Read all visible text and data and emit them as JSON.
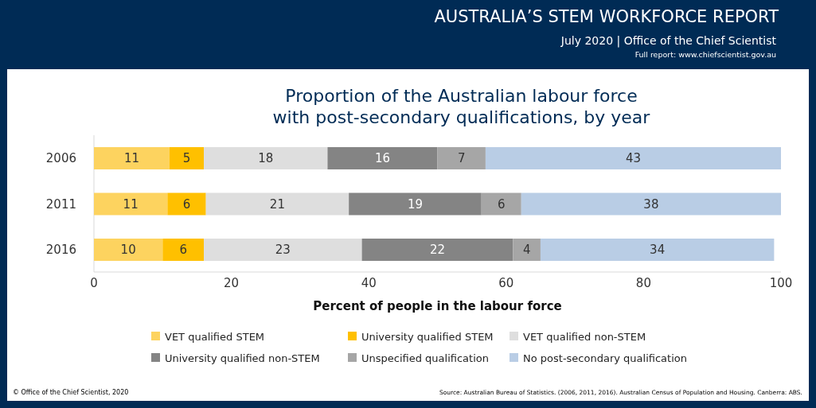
{
  "chart_data": {
    "type": "bar",
    "orientation": "horizontal",
    "stacked": true,
    "title": "Proportion of the Australian labour force\nwith post-secondary qualifications, by year",
    "xlabel": "Percent of people in the labour force",
    "categories": [
      "2006",
      "2011",
      "2016"
    ],
    "series": [
      {
        "name": "VET qualified STEM",
        "color": "#fdd35f",
        "values": [
          11,
          10.7,
          10
        ],
        "value_labels": [
          "11",
          "11",
          "10"
        ]
      },
      {
        "name": "University qualified STEM",
        "color": "#ffc000",
        "values": [
          5,
          5.6,
          6
        ],
        "value_labels": [
          "5",
          "6",
          "6"
        ]
      },
      {
        "name": "VET qualified non-STEM",
        "color": "#dedede",
        "values": [
          18,
          20.8,
          23
        ],
        "value_labels": [
          "18",
          "21",
          "23"
        ]
      },
      {
        "name": "University qualified non-STEM",
        "color": "#848484",
        "values": [
          16,
          19.3,
          22
        ],
        "value_labels": [
          "16",
          "19",
          "22"
        ]
      },
      {
        "name": "Unspecified qualification",
        "color": "#a6a6a6",
        "values": [
          7,
          5.8,
          4
        ],
        "value_labels": [
          "7",
          "6",
          "4"
        ]
      },
      {
        "name": "No post-secondary qualification",
        "color": "#b9cde5",
        "values": [
          43,
          37.8,
          34
        ],
        "value_labels": [
          "43",
          "38",
          "34"
        ]
      }
    ],
    "xlim": [
      0,
      100
    ],
    "xticks": [
      0,
      20,
      40,
      60,
      80,
      100
    ],
    "legend": "bottom",
    "grid": false,
    "annotations": [
      "AUSTRALIA’S STEM WORKFORCE REPORT",
      "July 2020 | Office of the Chief Scientist",
      "Full report: www.chiefscientist.gov.au",
      "© Office of the Chief Scientist, 2020",
      "Source: Australian Bureau of Statistics. (2006, 2011, 2016). Australian Census of Population and Housing. Canberra: ABS."
    ]
  }
}
